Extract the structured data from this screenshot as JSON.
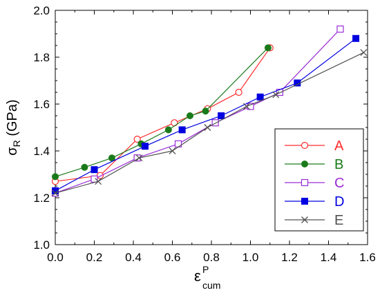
{
  "chart_data": {
    "type": "line",
    "title": "",
    "xlabel": {
      "main": "ε",
      "sup": "P",
      "sub": "cum"
    },
    "ylabel": {
      "main": "σ",
      "sub": "R",
      "rest": " (GPa)"
    },
    "xlim": [
      0,
      1.6
    ],
    "ylim": [
      1.0,
      2.0
    ],
    "xticks": [
      "0.0",
      "0.2",
      "0.4",
      "0.6",
      "0.8",
      "1.0",
      "1.2",
      "1.4",
      "1.6"
    ],
    "yticks": [
      "1.0",
      "1.2",
      "1.4",
      "1.6",
      "1.8",
      "2.0"
    ],
    "legend_position": "bottom-right",
    "series": [
      {
        "name": "A",
        "color": "#ff2a2a",
        "marker": "circle-open",
        "x": [
          0.0,
          0.23,
          0.42,
          0.61,
          0.78,
          0.94,
          1.1
        ],
        "y": [
          1.27,
          1.295,
          1.45,
          1.52,
          1.58,
          1.65,
          1.84
        ]
      },
      {
        "name": "B",
        "color": "#1a7a1a",
        "marker": "circle-filled",
        "x": [
          0.0,
          0.15,
          0.29,
          0.44,
          0.58,
          0.69,
          0.77,
          1.09
        ],
        "y": [
          1.29,
          1.33,
          1.37,
          1.43,
          1.49,
          1.55,
          1.57,
          1.84
        ]
      },
      {
        "name": "C",
        "color": "#9a2ad6",
        "marker": "square-open",
        "x": [
          0.0,
          0.2,
          0.42,
          0.63,
          0.82,
          1.0,
          1.15,
          1.46
        ],
        "y": [
          1.22,
          1.28,
          1.37,
          1.43,
          1.52,
          1.59,
          1.65,
          1.92
        ]
      },
      {
        "name": "D",
        "color": "#0000e0",
        "marker": "square-filled",
        "x": [
          0.0,
          0.2,
          0.46,
          0.65,
          0.85,
          1.05,
          1.24,
          1.54
        ],
        "y": [
          1.23,
          1.32,
          1.42,
          1.49,
          1.55,
          1.63,
          1.69,
          1.88
        ]
      },
      {
        "name": "E",
        "color": "#505050",
        "marker": "x",
        "x": [
          0.0,
          0.22,
          0.43,
          0.6,
          0.78,
          0.98,
          1.13,
          1.58
        ],
        "y": [
          1.22,
          1.27,
          1.37,
          1.4,
          1.5,
          1.59,
          1.64,
          1.82
        ]
      }
    ]
  }
}
